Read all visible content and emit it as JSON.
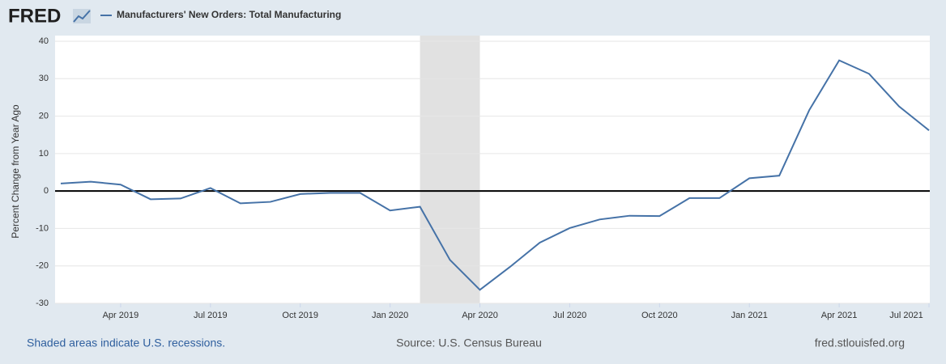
{
  "logo": "FRED",
  "chart_data": {
    "type": "line",
    "title": "Manufacturers' New Orders: Total Manufacturing",
    "y_label": "Percent Change from Year Ago",
    "x": [
      "2019-02",
      "2019-03",
      "2019-04",
      "2019-05",
      "2019-06",
      "2019-07",
      "2019-08",
      "2019-09",
      "2019-10",
      "2019-11",
      "2019-12",
      "2020-01",
      "2020-02",
      "2020-03",
      "2020-04",
      "2020-05",
      "2020-06",
      "2020-07",
      "2020-08",
      "2020-09",
      "2020-10",
      "2020-11",
      "2020-12",
      "2021-01",
      "2021-02",
      "2021-03",
      "2021-04",
      "2021-05",
      "2021-06",
      "2021-07"
    ],
    "series": [
      {
        "name": "Manufacturers' New Orders: Total Manufacturing",
        "color": "#4572a7",
        "values": [
          2.0,
          2.5,
          1.7,
          -2.2,
          -2.0,
          0.8,
          -3.3,
          -2.9,
          -0.8,
          -0.5,
          -0.5,
          -5.2,
          -4.2,
          -18.4,
          -26.4,
          -20.3,
          -13.8,
          -9.9,
          -7.6,
          -6.6,
          -6.7,
          -1.9,
          -1.9,
          3.4,
          4.1,
          21.6,
          34.9,
          31.3,
          22.6,
          16.2
        ]
      }
    ],
    "xlim": [
      "2019-02",
      "2021-07"
    ],
    "xticks": [
      {
        "value": "2019-04",
        "label": "Apr 2019"
      },
      {
        "value": "2019-07",
        "label": "Jul 2019"
      },
      {
        "value": "2019-10",
        "label": "Oct 2019"
      },
      {
        "value": "2020-01",
        "label": "Jan 2020"
      },
      {
        "value": "2020-04",
        "label": "Apr 2020"
      },
      {
        "value": "2020-07",
        "label": "Jul 2020"
      },
      {
        "value": "2020-10",
        "label": "Oct 2020"
      },
      {
        "value": "2021-01",
        "label": "Jan 2021"
      },
      {
        "value": "2021-04",
        "label": "Apr 2021"
      },
      {
        "value": "2021-07",
        "label": "Jul 2021"
      }
    ],
    "ylim": [
      -30,
      40
    ],
    "yticks": [
      -30,
      -20,
      -10,
      0,
      10,
      20,
      30,
      40
    ],
    "grid": true,
    "reference_line": 0,
    "recessions": [
      {
        "start": "2020-02",
        "end": "2020-04"
      }
    ],
    "recession_note": "Shaded areas indicate U.S. recessions.",
    "source": "Source: U.S. Census Bureau",
    "site": "fred.stlouisfed.org"
  }
}
